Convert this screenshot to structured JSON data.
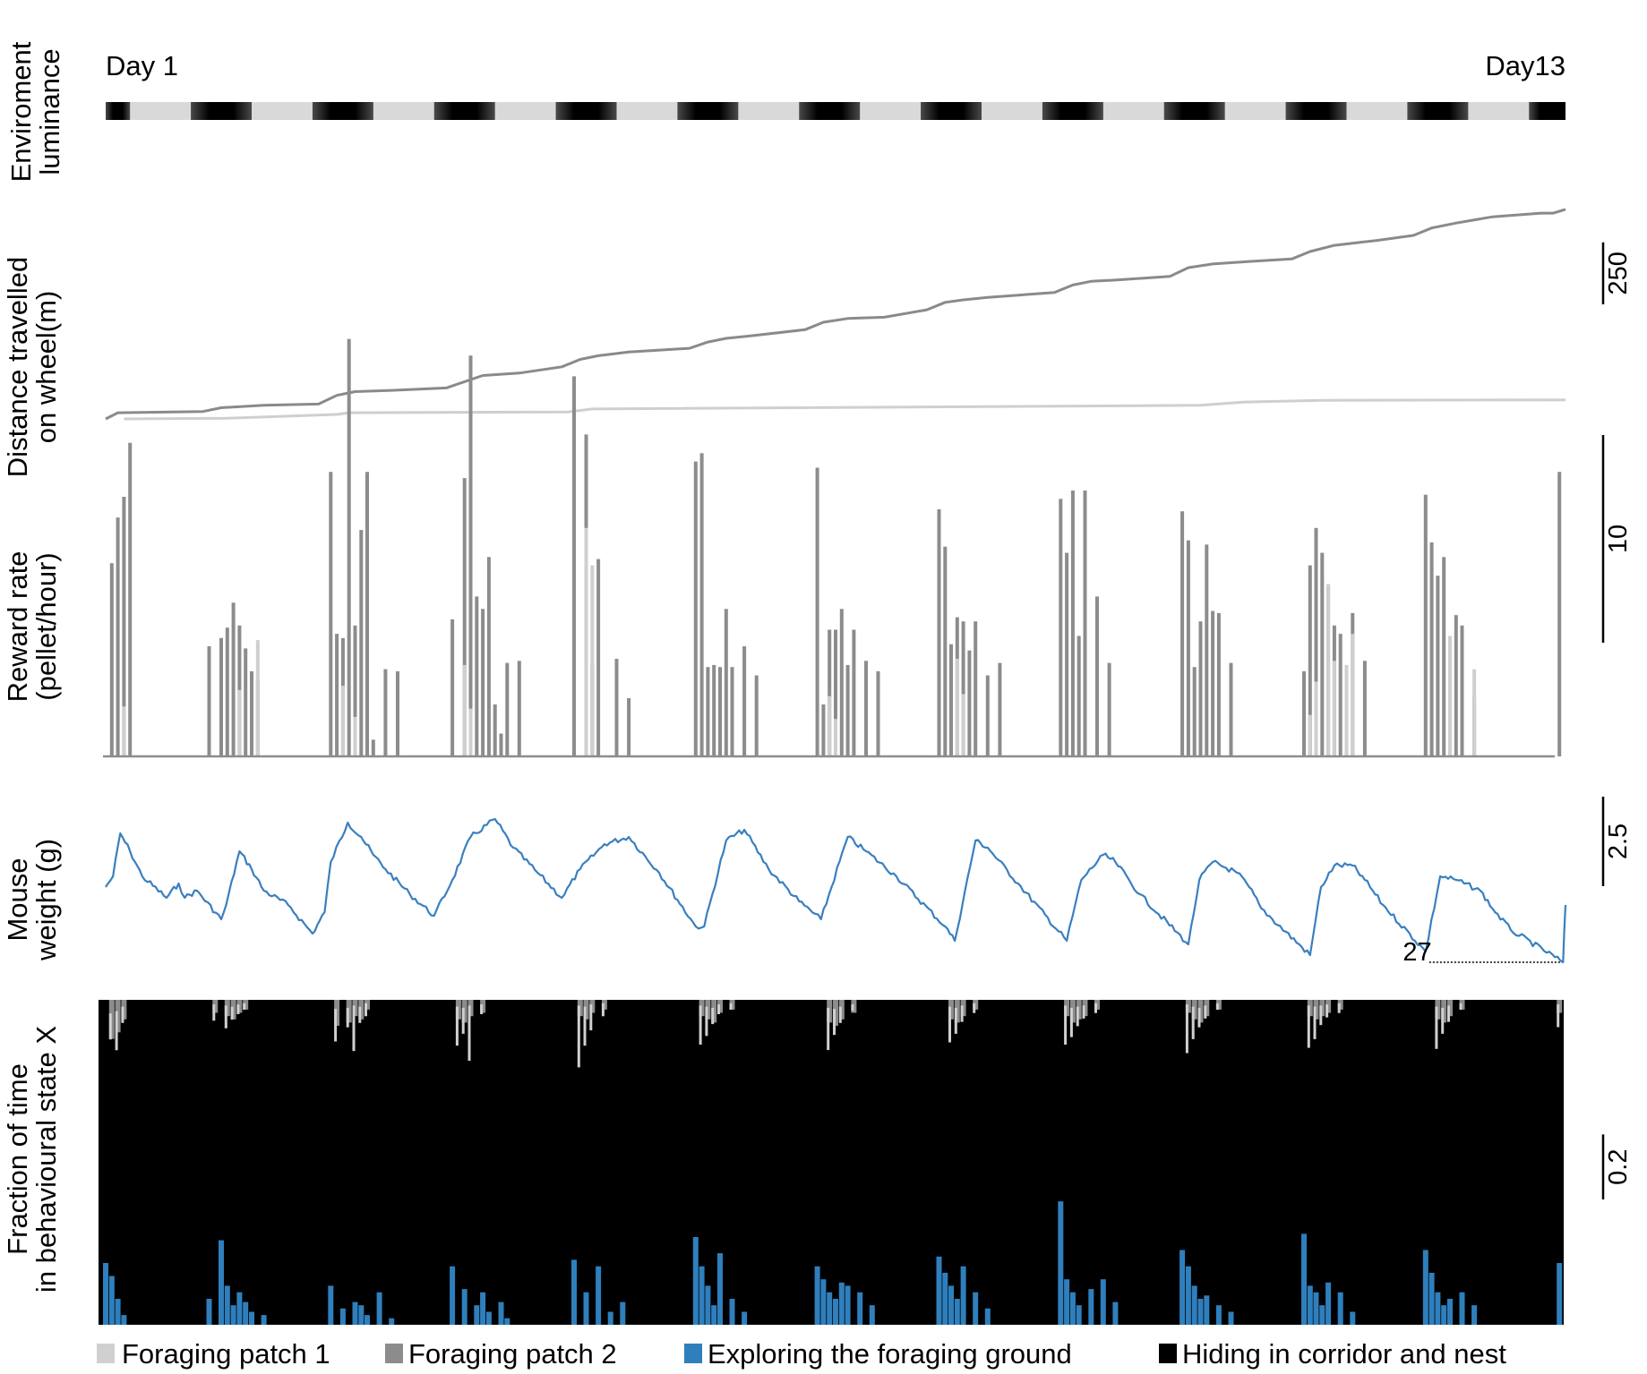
{
  "chart_data": [
    {
      "type": "heatmap",
      "ylabel": [
        "Enviroment",
        "luminance"
      ],
      "start_label": "Day 1",
      "end_label": "Day13",
      "days": 13,
      "first_light_day": 1,
      "colors": {
        "light": "#d9d9d9",
        "dark": "#000000"
      }
    },
    {
      "type": "line",
      "ylabel": [
        "Distance travelled",
        "on wheel(m)"
      ],
      "scale_bar": {
        "value": 250,
        "label": "250"
      },
      "x_unit": "days",
      "series": [
        {
          "color": "#8a8a8a",
          "x": [
            0,
            0.1,
            0.8,
            0.95,
            1.3,
            1.75,
            1.9,
            2.05,
            2.35,
            2.8,
            2.95,
            3.1,
            3.4,
            3.75,
            3.9,
            4.05,
            4.3,
            4.8,
            4.95,
            5.1,
            5.3,
            5.75,
            5.9,
            6.1,
            6.4,
            6.75,
            6.9,
            7.05,
            7.25,
            7.8,
            7.95,
            8.1,
            8.3,
            8.75,
            8.9,
            9.1,
            9.4,
            9.75,
            9.9,
            10.1,
            10.45,
            10.75,
            10.9,
            11.1,
            11.4,
            11.8,
            11.9,
            12.0
          ],
          "y": [
            0,
            25,
            30,
            45,
            55,
            60,
            95,
            110,
            115,
            125,
            150,
            175,
            185,
            210,
            240,
            255,
            270,
            285,
            310,
            325,
            335,
            360,
            390,
            405,
            410,
            440,
            470,
            480,
            490,
            510,
            540,
            555,
            560,
            575,
            610,
            625,
            635,
            645,
            675,
            700,
            720,
            740,
            770,
            790,
            815,
            830,
            830,
            845
          ]
        },
        {
          "color": "#cfcfcf",
          "x": [
            0.15,
            1.0,
            1.9,
            2.0,
            3.8,
            4.0,
            9.0,
            9.35,
            10.0,
            12.0
          ],
          "y": [
            0,
            3,
            18,
            25,
            28,
            40,
            55,
            68,
            75,
            77
          ]
        }
      ]
    },
    {
      "type": "bar",
      "ylabel": [
        "Reward rate",
        "(pellet/hour)"
      ],
      "scale_bar": {
        "value": 10,
        "label": "10"
      },
      "x_unit": "days",
      "series": [
        {
          "color": "#8c8c8c",
          "x": [
            0.05,
            0.1,
            0.15,
            0.2,
            0.85,
            0.95,
            1.0,
            1.05,
            1.1,
            1.15,
            1.2,
            1.25,
            1.85,
            1.9,
            1.95,
            2.0,
            2.05,
            2.1,
            2.15,
            2.2,
            2.3,
            2.4,
            2.85,
            2.95,
            3.0,
            3.05,
            3.1,
            3.15,
            3.2,
            3.25,
            3.3,
            3.4,
            3.85,
            3.95,
            4.0,
            4.05,
            4.2,
            4.3,
            4.85,
            4.9,
            4.95,
            5.0,
            5.05,
            5.1,
            5.15,
            5.25,
            5.35,
            5.85,
            5.9,
            5.95,
            6.0,
            6.05,
            6.1,
            6.15,
            6.25,
            6.35,
            6.85,
            6.9,
            6.95,
            7.0,
            7.05,
            7.1,
            7.15,
            7.25,
            7.35,
            7.85,
            7.9,
            7.95,
            8.0,
            8.05,
            8.15,
            8.25,
            8.85,
            8.9,
            8.95,
            9.0,
            9.05,
            9.1,
            9.15,
            9.25,
            9.85,
            9.9,
            9.95,
            10.0,
            10.05,
            10.1,
            10.15,
            10.2,
            10.25,
            10.35,
            10.85,
            10.9,
            10.95,
            11.0,
            11.05,
            11.1,
            11.15,
            11.25,
            11.95
          ],
          "values": [
            9.3,
            11.5,
            12.5,
            15.1,
            5.3,
            5.7,
            6.2,
            7.4,
            6.3,
            5.2,
            4.1,
            3.7,
            13.7,
            5.9,
            5.7,
            20.1,
            6.3,
            10.9,
            13.7,
            0.8,
            4.2,
            4.1,
            6.6,
            13.4,
            19.3,
            7.7,
            7.1,
            9.6,
            2.5,
            1.1,
            4.5,
            4.6,
            18.3,
            15.5,
            4.4,
            9.5,
            4.7,
            2.8,
            14.2,
            14.6,
            4.3,
            4.4,
            4.3,
            7.1,
            4.3,
            5.3,
            3.9,
            13.9,
            2.5,
            6.1,
            6.1,
            7.1,
            4.4,
            6.1,
            4.6,
            4.1,
            11.9,
            10.1,
            5.4,
            6.7,
            6.5,
            5.1,
            6.5,
            3.9,
            4.5,
            12.4,
            9.8,
            12.8,
            5.8,
            12.8,
            7.7,
            4.5,
            11.8,
            10.4,
            4.3,
            6.5,
            10.2,
            7.0,
            6.9,
            4.5,
            4.1,
            9.2,
            11.0,
            9.8,
            8.2,
            6.3,
            5.9,
            3.7,
            6.9,
            4.6,
            12.6,
            10.3,
            8.7,
            9.6,
            4.7,
            6.8,
            6.3,
            2.9,
            13.7
          ]
        },
        {
          "color": "#cfcfcf",
          "x": [
            0.15,
            1.1,
            1.25,
            1.95,
            2.05,
            2.95,
            3.0,
            3.95,
            4.0,
            5.95,
            6.0,
            7.0,
            7.05,
            9.9,
            9.95,
            10.05,
            10.1,
            10.2,
            10.25,
            11.05,
            11.25
          ],
          "values": [
            2.4,
            3.2,
            5.6,
            3.4,
            1.9,
            4.4,
            2.3,
            11.0,
            9.2,
            2.9,
            1.8,
            4.7,
            3.0,
            2.0,
            3.6,
            8.3,
            4.6,
            4.4,
            5.9,
            5.8,
            4.2
          ]
        }
      ]
    },
    {
      "type": "line",
      "ylabel": [
        "Mouse",
        "weight (g)"
      ],
      "scale_bar": {
        "value": 2.5,
        "label": "2.5"
      },
      "min_label": "27",
      "min_value": 27,
      "x_unit": "days",
      "color": "#3a7fbf",
      "x": [
        0,
        0.06,
        0.12,
        0.2,
        0.3,
        0.5,
        0.6,
        0.65,
        0.75,
        0.95,
        0.99,
        1.1,
        1.2,
        1.3,
        1.5,
        1.7,
        1.8,
        1.85,
        1.99,
        2.1,
        2.2,
        2.3,
        2.5,
        2.7,
        2.85,
        3.0,
        3.2,
        3.35,
        3.55,
        3.75,
        3.9,
        4.1,
        4.3,
        4.55,
        4.85,
        4.92,
        5.1,
        5.25,
        5.45,
        5.7,
        5.88,
        6.1,
        6.25,
        6.5,
        6.9,
        6.98,
        7.15,
        7.25,
        7.5,
        7.9,
        8.02,
        8.2,
        8.3,
        8.5,
        8.9,
        8.99,
        9.1,
        9.3,
        9.4,
        9.5,
        9.9,
        9.99,
        10.1,
        10.25,
        10.35,
        10.5,
        10.85,
        10.97,
        11.1,
        11.3,
        11.4,
        11.55,
        11.98,
        12.0
      ],
      "y": [
        29.1,
        29.4,
        30.6,
        30.1,
        29.4,
        28.8,
        29.2,
        28.8,
        29.0,
        28.2,
        28.6,
        30.1,
        29.6,
        29.0,
        28.6,
        27.8,
        28.4,
        29.8,
        30.9,
        30.5,
        30.0,
        29.6,
        28.9,
        28.3,
        29.3,
        30.5,
        31.0,
        30.2,
        29.5,
        28.8,
        29.6,
        30.3,
        30.5,
        29.5,
        28.0,
        28.0,
        30.4,
        30.7,
        29.6,
        28.7,
        28.2,
        30.5,
        30.1,
        29.4,
        28.0,
        27.6,
        30.4,
        30.2,
        29.2,
        27.6,
        29.3,
        30.0,
        29.8,
        28.9,
        27.5,
        29.3,
        29.8,
        29.5,
        29.1,
        28.5,
        27.2,
        29.1,
        29.7,
        29.7,
        29.3,
        28.6,
        27.3,
        29.4,
        29.3,
        29.0,
        28.5,
        27.9,
        27.0,
        28.6
      ]
    },
    {
      "type": "bar",
      "ylabel": [
        "Fraction of time",
        "in behavioural state X"
      ],
      "scale_bar": {
        "value": 0.2,
        "label": "0.2"
      },
      "x_unit": "days",
      "stacked": true,
      "series": [
        {
          "name": "Foraging patch 1",
          "color": "#d0d0d0",
          "x": [
            0.05,
            0.1,
            0.15,
            0.9,
            1.0,
            1.05,
            1.1,
            1.15,
            1.9,
            2.0,
            2.05,
            2.1,
            2.15,
            2.9,
            2.95,
            3.0,
            3.1,
            3.9,
            3.95,
            4.0,
            4.1,
            4.9,
            4.95,
            5.0,
            5.05,
            5.15,
            5.95,
            6.0,
            6.05,
            6.15,
            6.95,
            7.0,
            7.05,
            7.15,
            7.9,
            7.95,
            8.0,
            8.05,
            8.15,
            8.9,
            8.95,
            9.0,
            9.05,
            9.15,
            9.9,
            9.95,
            10.0,
            10.05,
            10.15,
            10.95,
            11.0,
            11.05,
            11.15,
            11.95
          ],
          "values": [
            0.08,
            0.12,
            0.05,
            0.05,
            0.07,
            0.04,
            0.03,
            0.02,
            0.1,
            0.06,
            0.14,
            0.05,
            0.04,
            0.12,
            0.08,
            0.17,
            0.03,
            0.19,
            0.12,
            0.08,
            0.04,
            0.12,
            0.09,
            0.05,
            0.03,
            0.02,
            0.13,
            0.08,
            0.05,
            0.02,
            0.11,
            0.08,
            0.05,
            0.03,
            0.12,
            0.09,
            0.06,
            0.04,
            0.03,
            0.15,
            0.1,
            0.06,
            0.04,
            0.02,
            0.13,
            0.1,
            0.06,
            0.04,
            0.03,
            0.13,
            0.08,
            0.05,
            0.02,
            0.07
          ]
        },
        {
          "name": "Foraging patch 2",
          "color": "#8c8c8c",
          "x": [
            0.05,
            0.1,
            0.15,
            0.9,
            1.0,
            1.05,
            1.1,
            1.15,
            1.9,
            2.0,
            2.05,
            2.1,
            2.15,
            2.9,
            2.95,
            3.0,
            3.1,
            3.9,
            3.95,
            4.0,
            4.1,
            4.9,
            4.95,
            5.0,
            5.05,
            5.15,
            5.95,
            6.0,
            6.05,
            6.15,
            6.95,
            7.0,
            7.05,
            7.15,
            7.9,
            7.95,
            8.0,
            8.05,
            8.15,
            8.9,
            8.95,
            9.0,
            9.05,
            9.15,
            9.9,
            9.95,
            10.0,
            10.05,
            10.15,
            10.95,
            11.0,
            11.05,
            11.15,
            11.95
          ],
          "values": [
            0.12,
            0.1,
            0.06,
            0.04,
            0.05,
            0.06,
            0.04,
            0.03,
            0.08,
            0.07,
            0.05,
            0.06,
            0.03,
            0.06,
            0.07,
            0.05,
            0.04,
            0.05,
            0.06,
            0.04,
            0.03,
            0.05,
            0.06,
            0.07,
            0.04,
            0.03,
            0.07,
            0.08,
            0.06,
            0.04,
            0.06,
            0.07,
            0.05,
            0.03,
            0.05,
            0.07,
            0.06,
            0.05,
            0.03,
            0.04,
            0.06,
            0.07,
            0.05,
            0.03,
            0.05,
            0.06,
            0.05,
            0.04,
            0.03,
            0.06,
            0.07,
            0.05,
            0.03,
            0.04
          ]
        },
        {
          "name": "Exploring the foraging ground",
          "color": "#2f7fbd",
          "x": [
            0.0,
            0.05,
            0.1,
            0.15,
            0.85,
            0.95,
            1.0,
            1.05,
            1.1,
            1.15,
            1.2,
            1.3,
            1.85,
            1.95,
            2.05,
            2.1,
            2.15,
            2.25,
            2.35,
            2.85,
            2.95,
            3.05,
            3.1,
            3.15,
            3.25,
            3.3,
            3.85,
            3.95,
            4.05,
            4.15,
            4.25,
            4.85,
            4.9,
            4.95,
            5.0,
            5.05,
            5.15,
            5.25,
            5.85,
            5.9,
            5.95,
            6.0,
            6.05,
            6.1,
            6.2,
            6.3,
            6.85,
            6.9,
            6.95,
            7.0,
            7.05,
            7.15,
            7.25,
            7.85,
            7.9,
            7.95,
            8.0,
            8.1,
            8.2,
            8.3,
            8.85,
            8.9,
            8.95,
            9.0,
            9.05,
            9.15,
            9.25,
            9.85,
            9.9,
            9.95,
            10.0,
            10.05,
            10.15,
            10.25,
            10.85,
            10.9,
            10.95,
            11.0,
            11.05,
            11.15,
            11.25,
            11.95
          ],
          "values": [
            0.19,
            0.15,
            0.08,
            0.03,
            0.08,
            0.26,
            0.12,
            0.06,
            0.1,
            0.07,
            0.04,
            0.03,
            0.12,
            0.05,
            0.07,
            0.06,
            0.03,
            0.1,
            0.02,
            0.18,
            0.11,
            0.06,
            0.1,
            0.04,
            0.07,
            0.02,
            0.2,
            0.1,
            0.18,
            0.04,
            0.07,
            0.27,
            0.18,
            0.12,
            0.06,
            0.22,
            0.08,
            0.04,
            0.18,
            0.14,
            0.1,
            0.08,
            0.13,
            0.12,
            0.1,
            0.06,
            0.21,
            0.16,
            0.12,
            0.08,
            0.18,
            0.1,
            0.05,
            0.38,
            0.14,
            0.1,
            0.06,
            0.11,
            0.14,
            0.07,
            0.23,
            0.18,
            0.12,
            0.08,
            0.09,
            0.06,
            0.04,
            0.28,
            0.12,
            0.1,
            0.06,
            0.13,
            0.1,
            0.04,
            0.23,
            0.16,
            0.1,
            0.06,
            0.08,
            0.1,
            0.06,
            0.19
          ]
        },
        {
          "name": "Hiding in corridor and nest",
          "color": "#000000",
          "fills_remainder": true
        }
      ]
    }
  ],
  "legend": {
    "placement": "bottom",
    "items": [
      {
        "label": "Foraging patch 1",
        "color": "#d0d0d0"
      },
      {
        "label": "Foraging patch 2",
        "color": "#8c8c8c"
      },
      {
        "label": "Exploring the foraging ground",
        "color": "#2f7fbd"
      },
      {
        "label": "Hiding in corridor and nest",
        "color": "#000000"
      }
    ]
  }
}
